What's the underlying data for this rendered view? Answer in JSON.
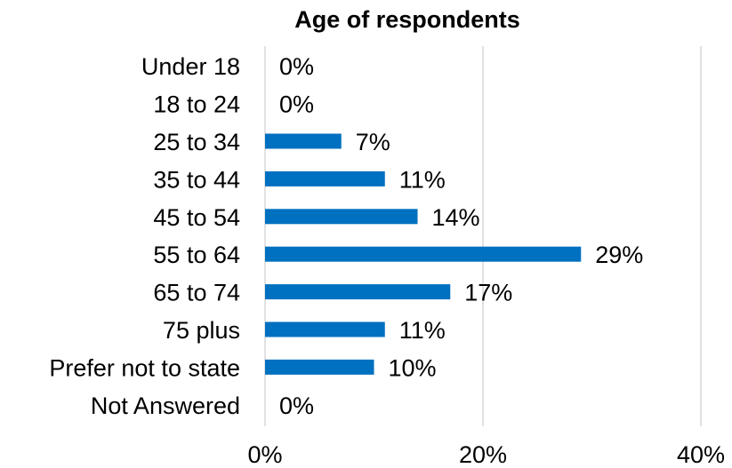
{
  "chart_data": {
    "type": "bar",
    "orientation": "horizontal",
    "title": "Age of respondents",
    "xlabel": "",
    "ylabel": "",
    "categories": [
      "Under 18",
      "18 to 24",
      "25 to 34",
      "35 to 44",
      "45 to 54",
      "55 to 64",
      "65 to 74",
      "75 plus",
      "Prefer not to state",
      "Not Answered"
    ],
    "values": [
      0,
      0,
      7,
      11,
      14,
      29,
      17,
      11,
      10,
      0
    ],
    "data_labels": [
      "0%",
      "0%",
      "7%",
      "11%",
      "14%",
      "29%",
      "17%",
      "11%",
      "10%",
      "0%"
    ],
    "xlim": [
      0,
      40
    ],
    "x_ticks": [
      0,
      20,
      40
    ],
    "x_tick_labels": [
      "0%",
      "20%",
      "40%"
    ],
    "grid": true,
    "legend": "none",
    "bar_color": "#0070C0",
    "grid_color": "#D9D9D9"
  }
}
